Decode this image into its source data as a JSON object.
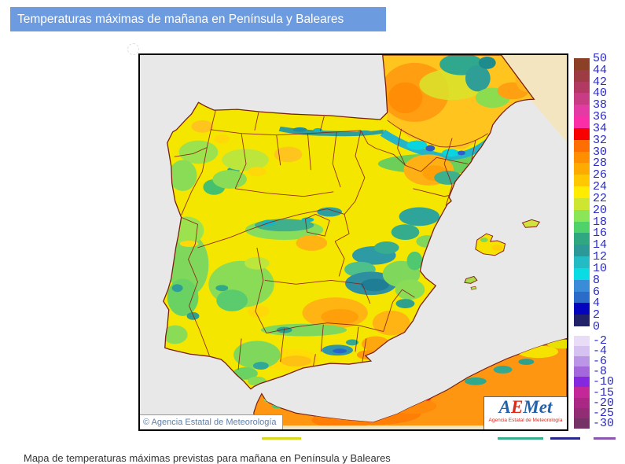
{
  "header": {
    "title": "Temperaturas máximas de mañana en Península y Baleares",
    "bg_color": "#6C9BE0",
    "text_color": "#FFFFFF"
  },
  "map": {
    "copyright": "© Agencia Estatal de Meteorología",
    "logo": {
      "word": "AEMet",
      "subtitle": "Agencia Estatal de Meteorología"
    },
    "sea_color": "#E8E8E8",
    "outside_domain_color": "#F3E5C0",
    "boundary_color": "#8B2518"
  },
  "scale": {
    "label_color": "#2A2AC8",
    "upper": {
      "labels": [
        "50",
        "44",
        "42",
        "40",
        "38",
        "36",
        "34",
        "32",
        "30",
        "28",
        "26",
        "24",
        "22",
        "20",
        "18",
        "16",
        "14",
        "12",
        "10",
        "8",
        "6",
        "4",
        "2",
        "0"
      ],
      "colors": [
        "#8C4126",
        "#9E3C46",
        "#B23A62",
        "#C83C84",
        "#E43AA4",
        "#FA2FA8",
        "#F80000",
        "#FF6E00",
        "#FF8E00",
        "#FFAA00",
        "#FFC800",
        "#FFEC00",
        "#CCE632",
        "#8AE656",
        "#50D26A",
        "#2FA882",
        "#2C9898",
        "#24BCC4",
        "#0ADCE4",
        "#3A8CD8",
        "#2A6CC8",
        "#0404BE",
        "#22226A"
      ]
    },
    "lower": {
      "labels": [
        "-2",
        "-4",
        "-6",
        "-8",
        "-10",
        "-15",
        "-20",
        "-25",
        "-30"
      ],
      "colors": [
        "#E8DCF6",
        "#D6C2F0",
        "#BC96E6",
        "#A468DC",
        "#8428E0",
        "#C42898",
        "#AA2884",
        "#922C74",
        "#743266"
      ]
    }
  },
  "footer": {
    "cropped_text": "Mapa de temperaturas máximas previstas para mañana en Península y Baleares"
  }
}
